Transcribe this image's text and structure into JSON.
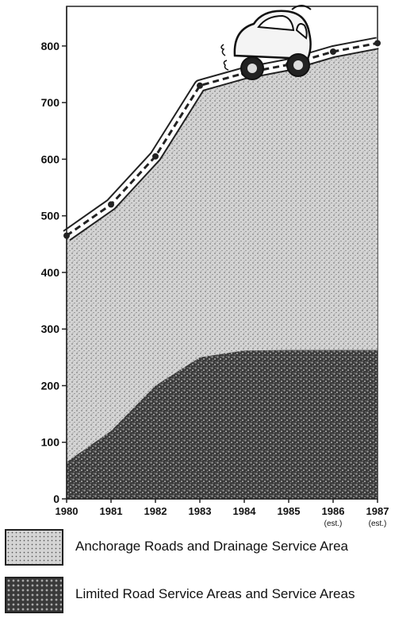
{
  "chart_data": {
    "type": "area",
    "categories": [
      "1980",
      "1981",
      "1982",
      "1983",
      "1984",
      "1985",
      "1986",
      "1987"
    ],
    "category_sublabels": [
      "",
      "",
      "",
      "",
      "",
      "",
      "(est.)",
      "(est.)"
    ],
    "series": [
      {
        "name": "Anchorage Roads and Drainage Service Area",
        "values": [
          465,
          520,
          605,
          730,
          752,
          767,
          790,
          805
        ],
        "color": "#c9c9c9"
      },
      {
        "name": "Limited Road Service Areas and Service Areas",
        "values": [
          65,
          120,
          200,
          250,
          262,
          263,
          263,
          263
        ],
        "color": "#3a3a3a"
      }
    ],
    "yticks": [
      0,
      100,
      200,
      300,
      400,
      500,
      600,
      700,
      800
    ],
    "ylim": [
      0,
      870
    ],
    "legend_position": "bottom",
    "grid": false
  }
}
